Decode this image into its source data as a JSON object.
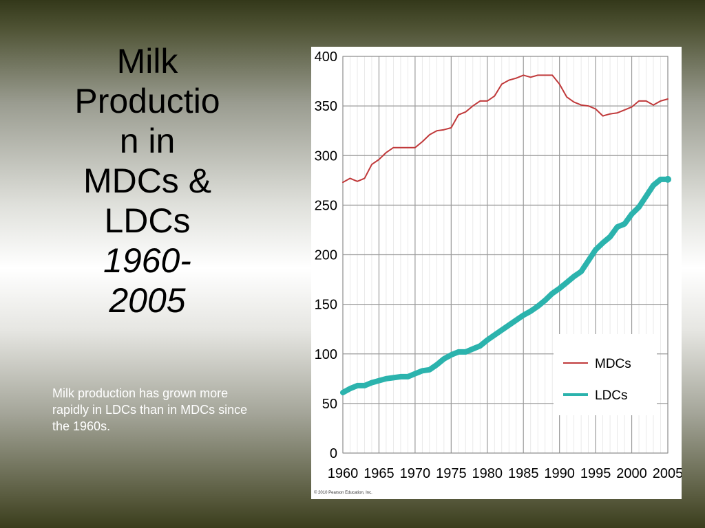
{
  "slide": {
    "title_lines": [
      "Milk",
      "Productio",
      "n in",
      "MDCs &",
      "LDCs"
    ],
    "title_italic_lines": [
      "1960-",
      "2005"
    ],
    "caption": "Milk production has grown more rapidly in LDCs than in MDCs since the 1960s."
  },
  "chart_data": {
    "type": "line",
    "title": "",
    "xlabel": "",
    "ylabel": "",
    "xlim": [
      1960,
      2005
    ],
    "ylim": [
      0,
      400
    ],
    "x_ticks": [
      1960,
      1965,
      1970,
      1975,
      1980,
      1985,
      1990,
      1995,
      2000,
      2005
    ],
    "y_ticks": [
      0,
      50,
      100,
      150,
      200,
      250,
      300,
      350,
      400
    ],
    "grid": true,
    "legend_position": "bottom-right",
    "copyright": "© 2010 Pearson Education, Inc.",
    "x": [
      1960,
      1961,
      1962,
      1963,
      1964,
      1965,
      1966,
      1967,
      1968,
      1969,
      1970,
      1971,
      1972,
      1973,
      1974,
      1975,
      1976,
      1977,
      1978,
      1979,
      1980,
      1981,
      1982,
      1983,
      1984,
      1985,
      1986,
      1987,
      1988,
      1989,
      1990,
      1991,
      1992,
      1993,
      1994,
      1995,
      1996,
      1997,
      1998,
      1999,
      2000,
      2001,
      2002,
      2003,
      2004,
      2005
    ],
    "series": [
      {
        "name": "MDCs",
        "color": "#c0393a",
        "values": [
          273,
          277,
          274,
          277,
          291,
          296,
          303,
          308,
          308,
          308,
          308,
          314,
          321,
          325,
          326,
          328,
          341,
          344,
          350,
          355,
          355,
          360,
          372,
          376,
          378,
          381,
          379,
          381,
          381,
          381,
          372,
          359,
          354,
          351,
          350,
          347,
          340,
          342,
          343,
          346,
          349,
          355,
          355,
          351,
          355,
          357
        ]
      },
      {
        "name": "LDCs",
        "color": "#2bb3ad",
        "values": [
          61,
          65,
          68,
          68,
          71,
          73,
          75,
          76,
          77,
          77,
          80,
          83,
          84,
          89,
          95,
          99,
          102,
          102,
          105,
          108,
          114,
          119,
          124,
          129,
          134,
          139,
          143,
          148,
          154,
          161,
          166,
          172,
          178,
          183,
          194,
          205,
          212,
          218,
          228,
          231,
          241,
          248,
          259,
          270,
          276,
          276
        ]
      }
    ]
  }
}
